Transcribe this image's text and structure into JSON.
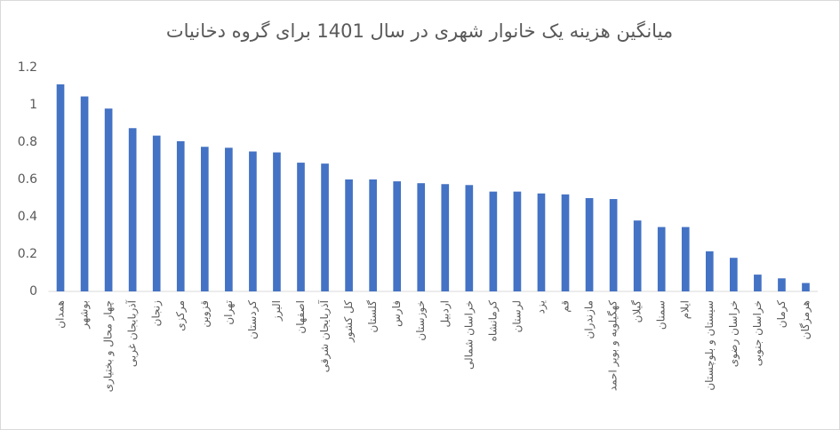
{
  "chart_data": {
    "type": "bar",
    "title": "میانگین هزینه یک خانوار شهری در سال 1401 برای گروه دخانیات",
    "categories": [
      "همدان",
      "بوشهر",
      "چهار محال و بختیاری",
      "آذربایجان غربی",
      "زنجان",
      "مرکزی",
      "قزوین",
      "تهران",
      "کردستان",
      "البرز",
      "اصفهان",
      "آذربایجان شرقی",
      "کل کشور",
      "گلستان",
      "فارس",
      "خوزستان",
      "اردبیل",
      "خراسان شمالی",
      "کرمانشاه",
      "لرستان",
      "یزد",
      "قم",
      "مازندران",
      "کهگیلویه و بویر احمد",
      "گیلان",
      "سمنان",
      "ایلام",
      "سیستان و بلوچستان",
      "خراسان رضوی",
      "خراسان جنوبی",
      "کرمان",
      "هرمزگان"
    ],
    "values": [
      1.11,
      1.045,
      0.98,
      0.875,
      0.835,
      0.805,
      0.775,
      0.77,
      0.75,
      0.745,
      0.69,
      0.685,
      0.6,
      0.6,
      0.59,
      0.58,
      0.575,
      0.57,
      0.535,
      0.535,
      0.525,
      0.52,
      0.5,
      0.495,
      0.38,
      0.345,
      0.345,
      0.215,
      0.18,
      0.09,
      0.07,
      0.045
    ],
    "color": "#4472c4",
    "ylim": [
      0,
      1.2
    ],
    "yticks": [
      0,
      0.2,
      0.4,
      0.6,
      0.8,
      1,
      1.2
    ],
    "grid": false
  }
}
